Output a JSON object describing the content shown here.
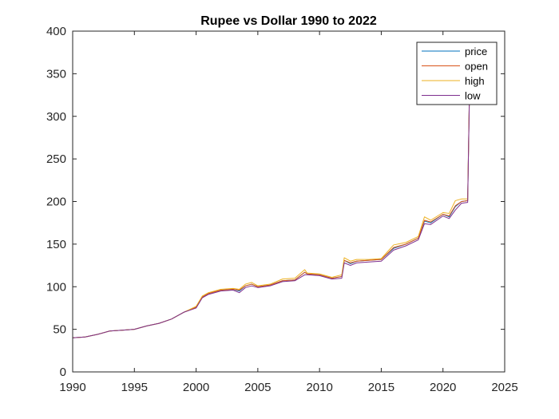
{
  "chart_data": {
    "type": "line",
    "title": "Rupee vs Dollar 1990 to 2022",
    "xlabel": "",
    "ylabel": "",
    "xlim": [
      1990,
      2025
    ],
    "ylim": [
      0,
      400
    ],
    "xticks": [
      "1990",
      "1995",
      "2000",
      "2005",
      "2010",
      "2015",
      "2020",
      "2025"
    ],
    "yticks": [
      "0",
      "50",
      "100",
      "150",
      "200",
      "250",
      "300",
      "350",
      "400"
    ],
    "grid": false,
    "legend_position": "top-right",
    "series": [
      {
        "name": "price",
        "color": "#0072BD",
        "x": [
          1990,
          1991,
          1992,
          1993,
          1994,
          1995,
          1996,
          1997,
          1998,
          1999,
          2000,
          2000.5,
          2001,
          2002,
          2003,
          2003.5,
          2004,
          2004.5,
          2005,
          2006,
          2007,
          2008,
          2008.8,
          2009,
          2010,
          2011,
          2011.8,
          2012,
          2012.5,
          2013,
          2014,
          2015,
          2016,
          2017,
          2018,
          2018.5,
          2019,
          2020,
          2020.5,
          2021,
          2021.5,
          2022,
          2022.2
        ],
        "y": [
          40,
          41,
          44,
          48,
          49,
          50,
          54,
          57,
          62,
          70,
          76,
          88,
          92,
          96,
          97,
          95,
          101,
          103,
          100,
          102,
          107,
          108,
          117,
          115,
          114,
          110,
          112,
          131,
          127,
          130,
          131,
          132,
          145,
          150,
          157,
          177,
          175,
          185,
          182,
          194,
          200,
          201,
          378
        ]
      },
      {
        "name": "open",
        "color": "#D95319",
        "x": [
          1990,
          1991,
          1992,
          1993,
          1994,
          1995,
          1996,
          1997,
          1998,
          1999,
          2000,
          2000.5,
          2001,
          2002,
          2003,
          2003.5,
          2004,
          2004.5,
          2005,
          2006,
          2007,
          2008,
          2008.8,
          2009,
          2010,
          2011,
          2011.8,
          2012,
          2012.5,
          2013,
          2014,
          2015,
          2016,
          2017,
          2018,
          2018.5,
          2019,
          2020,
          2020.5,
          2021,
          2021.5,
          2022,
          2022.2
        ],
        "y": [
          40,
          41,
          44,
          48,
          49,
          50,
          54,
          57,
          62,
          70,
          76,
          88,
          92,
          96,
          97,
          96,
          101,
          103,
          100,
          102,
          107,
          108,
          117,
          115,
          114,
          110,
          112,
          131,
          128,
          130,
          131,
          132,
          146,
          150,
          157,
          178,
          176,
          185,
          183,
          195,
          200,
          201,
          378
        ]
      },
      {
        "name": "high",
        "color": "#EDB120",
        "x": [
          1990,
          1991,
          1992,
          1993,
          1994,
          1995,
          1996,
          1997,
          1998,
          1999,
          2000,
          2000.5,
          2001,
          2002,
          2003,
          2003.5,
          2004,
          2004.5,
          2005,
          2006,
          2007,
          2008,
          2008.8,
          2009,
          2010,
          2011,
          2011.8,
          2012,
          2012.5,
          2013,
          2014,
          2015,
          2016,
          2017,
          2018,
          2018.5,
          2019,
          2020,
          2020.5,
          2021,
          2021.5,
          2022,
          2022.2
        ],
        "y": [
          40,
          41,
          44,
          48,
          49,
          50,
          54,
          57,
          62,
          70,
          77,
          89,
          93,
          97,
          98,
          97,
          103,
          105,
          101,
          103,
          109,
          110,
          120,
          116,
          115,
          111,
          114,
          134,
          130,
          132,
          132,
          133,
          149,
          152,
          159,
          182,
          178,
          187,
          186,
          201,
          203,
          203,
          380
        ]
      },
      {
        "name": "low",
        "color": "#7E2F8E",
        "x": [
          1990,
          1991,
          1992,
          1993,
          1994,
          1995,
          1996,
          1997,
          1998,
          1999,
          2000,
          2000.5,
          2001,
          2002,
          2003,
          2003.5,
          2004,
          2004.5,
          2005,
          2006,
          2007,
          2008,
          2008.8,
          2009,
          2010,
          2011,
          2011.8,
          2012,
          2012.5,
          2013,
          2014,
          2015,
          2016,
          2017,
          2018,
          2018.5,
          2019,
          2020,
          2020.5,
          2021,
          2021.5,
          2022,
          2022.2
        ],
        "y": [
          40,
          41,
          44,
          48,
          49,
          50,
          54,
          57,
          62,
          70,
          75,
          87,
          91,
          95,
          96,
          93,
          99,
          101,
          99,
          101,
          106,
          107,
          114,
          114,
          113,
          109,
          110,
          128,
          125,
          128,
          129,
          130,
          143,
          148,
          155,
          174,
          173,
          183,
          180,
          190,
          198,
          199,
          375
        ]
      }
    ]
  }
}
